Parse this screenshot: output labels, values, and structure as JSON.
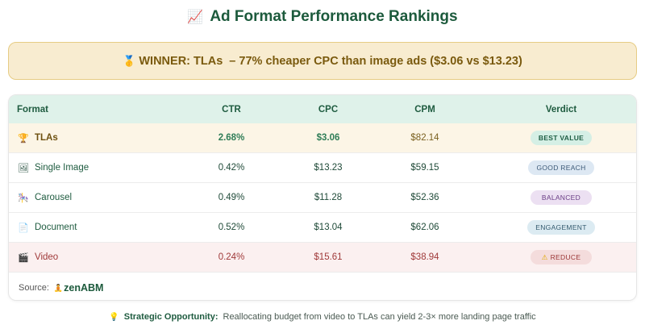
{
  "header": {
    "icon": "chart-increasing-icon",
    "icon_glyph": "📈",
    "title": "Ad Format Performance Rankings"
  },
  "winner": {
    "icon": "medal-icon",
    "icon_glyph": "🥇",
    "label": "WINNER: TLAs",
    "message": "– 77% cheaper CPC than image ads ($3.06 vs $13.23)",
    "background": "#f8ecd0",
    "border": "#e6cc84"
  },
  "table": {
    "columns": [
      "Format",
      "CTR",
      "CPC",
      "CPM",
      "Verdict"
    ],
    "rows": [
      {
        "icon": "trophy-icon",
        "icon_glyph": "🏆",
        "format": "TLAs",
        "ctr": "2.68%",
        "cpc": "$3.06",
        "cpm": "$82.14",
        "verdict": "BEST VALUE",
        "verdict_icon": ""
      },
      {
        "icon": "framed-picture-icon",
        "icon_glyph": "🖼",
        "format": "Single Image",
        "ctr": "0.42%",
        "cpc": "$13.23",
        "cpm": "$59.15",
        "verdict": "GOOD REACH",
        "verdict_icon": ""
      },
      {
        "icon": "carousel-horse-icon",
        "icon_glyph": "🎠",
        "format": "Carousel",
        "ctr": "0.49%",
        "cpc": "$11.28",
        "cpm": "$52.36",
        "verdict": "BALANCED",
        "verdict_icon": ""
      },
      {
        "icon": "document-icon",
        "icon_glyph": "📄",
        "format": "Document",
        "ctr": "0.52%",
        "cpc": "$13.04",
        "cpm": "$62.06",
        "verdict": "ENGAGEMENT",
        "verdict_icon": ""
      },
      {
        "icon": "clapper-board-icon",
        "icon_glyph": "🎬",
        "format": "Video",
        "ctr": "0.24%",
        "cpc": "$15.61",
        "cpm": "$38.94",
        "verdict": "REDUCE",
        "verdict_icon": "⚠"
      }
    ],
    "source_label": "Source:",
    "source_brand": "zenABM",
    "source_brand_icon_glyph": "🧘"
  },
  "footer": {
    "icon": "light-bulb-icon",
    "icon_glyph": "💡",
    "label": "Strategic Opportunity:",
    "text": "Reallocating budget from video to TLAs can yield 2-3× more landing page traffic"
  },
  "colors": {
    "title": "#1c5a3c",
    "header_bg": "#dff2ea",
    "winner_row_bg": "#fcf5e6",
    "reduce_row_bg": "#fbf0f0",
    "positive": "#2f7d57",
    "negative": "#a03a3a"
  }
}
